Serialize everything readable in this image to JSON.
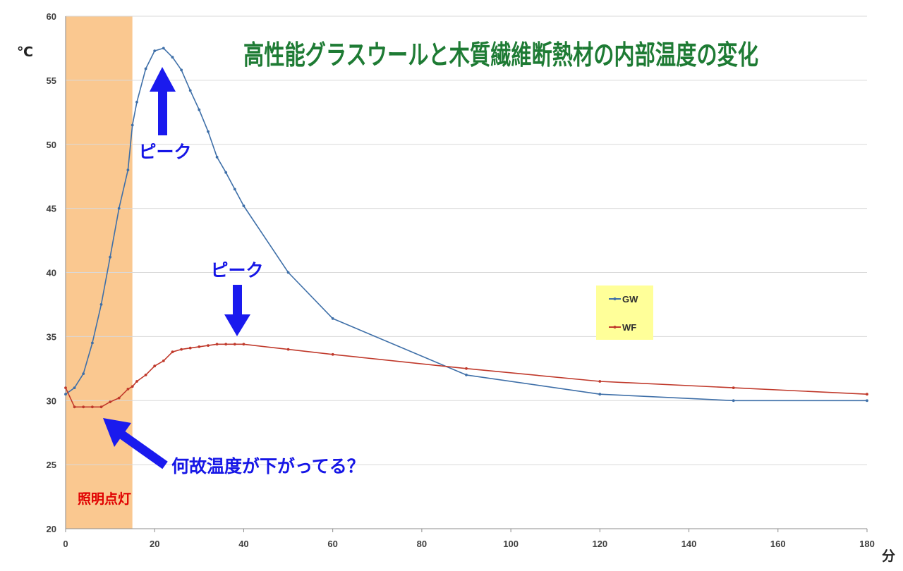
{
  "chart_data": {
    "type": "line",
    "title": "高性能グラスウールと木質繊維断熱材の内部温度の変化",
    "ylabel": "℃",
    "xlabel": "分",
    "xlim": [
      0,
      180
    ],
    "ylim": [
      20,
      60
    ],
    "x_ticks": [
      0,
      20,
      40,
      60,
      80,
      100,
      120,
      140,
      160,
      180
    ],
    "y_ticks": [
      20,
      25,
      30,
      35,
      40,
      45,
      50,
      55,
      60
    ],
    "grid": "horizontal",
    "legend_position": "right",
    "shaded_band": {
      "x_start": 0,
      "x_end": 15,
      "label": "照明点灯",
      "color": "#fac890"
    },
    "series": [
      {
        "name": "GW",
        "color": "#3e6fa8",
        "x": [
          0,
          2,
          4,
          6,
          8,
          10,
          12,
          14,
          15,
          16,
          18,
          20,
          22,
          24,
          26,
          28,
          30,
          32,
          34,
          36,
          38,
          40,
          50,
          60,
          90,
          120,
          150,
          180
        ],
        "y": [
          30.5,
          31.0,
          32.1,
          34.5,
          37.5,
          41.2,
          45.0,
          48.0,
          51.5,
          53.3,
          55.9,
          57.3,
          57.5,
          56.8,
          55.8,
          54.2,
          52.7,
          51.0,
          49.0,
          47.8,
          46.5,
          45.2,
          40.0,
          36.4,
          32.0,
          30.5,
          30.0,
          30.0
        ]
      },
      {
        "name": "WF",
        "color": "#c0392b",
        "x": [
          0,
          2,
          4,
          6,
          8,
          10,
          12,
          14,
          15,
          16,
          18,
          20,
          22,
          24,
          26,
          28,
          30,
          32,
          34,
          36,
          38,
          40,
          50,
          60,
          90,
          120,
          150,
          180
        ],
        "y": [
          31.0,
          29.5,
          29.5,
          29.5,
          29.5,
          29.9,
          30.2,
          30.9,
          31.1,
          31.5,
          32.0,
          32.7,
          33.1,
          33.8,
          34.0,
          34.1,
          34.2,
          34.3,
          34.4,
          34.4,
          34.4,
          34.4,
          34.0,
          33.6,
          32.5,
          31.5,
          31.0,
          30.5
        ]
      }
    ],
    "annotations": [
      {
        "id": "gw-peak",
        "text": "ピーク",
        "points_to": {
          "x": 22,
          "y": 57.5
        }
      },
      {
        "id": "wf-peak",
        "text": "ピーク",
        "points_to": {
          "x": 38,
          "y": 34.4
        }
      },
      {
        "id": "dip",
        "text": "何故温度が下がってる？",
        "points_to": {
          "x": 8,
          "y": 29.5
        }
      }
    ]
  },
  "colors": {
    "title": "#1e7b34",
    "annotation": "#1616e6",
    "band_label": "#e00000",
    "legend_bg": "#ffff99",
    "grid": "#d9d9d9"
  }
}
